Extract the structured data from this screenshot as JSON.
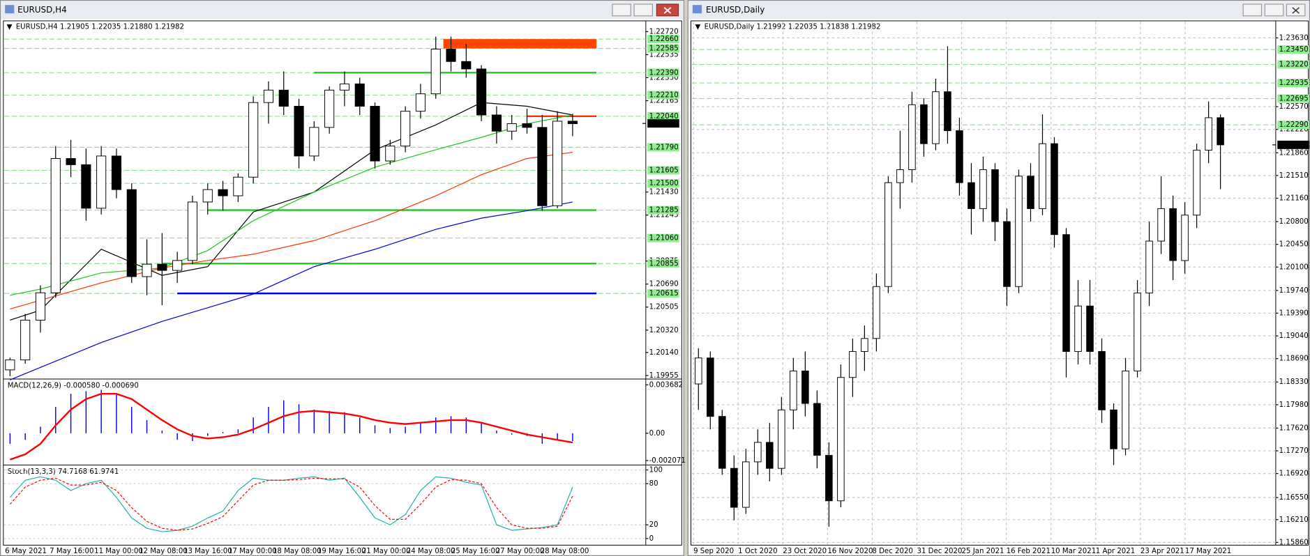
{
  "chart_data": [
    {
      "type": "candlestick",
      "window_title": "EURUSD,H4",
      "info": "EURUSD,H4  1.21905 1.22035 1.21880 1.21982",
      "grid": false,
      "ylim": [
        1.1994,
        1.228
      ],
      "yticks": [
        {
          "value": 1.2272,
          "label": "1.22720"
        },
        {
          "value": 1.22535,
          "label": "1.22535"
        },
        {
          "value": 1.2235,
          "label": "1.22350"
        },
        {
          "value": 1.22165,
          "label": "1.22165"
        },
        {
          "value": 1.2143,
          "label": "1.21430"
        },
        {
          "value": 1.21245,
          "label": "1.21245"
        },
        {
          "value": 1.20875,
          "label": "1.20875"
        },
        {
          "value": 1.2069,
          "label": "1.20690"
        },
        {
          "value": 1.20505,
          "label": "1.20505"
        },
        {
          "value": 1.2032,
          "label": "1.20320"
        },
        {
          "value": 1.2014,
          "label": "1.20140"
        },
        {
          "value": 1.19955,
          "label": "1.19955"
        }
      ],
      "levels": [
        {
          "value": 1.2266,
          "label": "1.22660"
        },
        {
          "value": 1.22585,
          "label": "1.22585"
        },
        {
          "value": 1.2239,
          "label": "1.22390"
        },
        {
          "value": 1.2221,
          "label": "1.22210"
        },
        {
          "value": 1.2204,
          "label": "1.22040"
        },
        {
          "value": 1.2179,
          "label": "1.21790"
        },
        {
          "value": 1.21605,
          "label": "1.21605"
        },
        {
          "value": 1.215,
          "label": "1.21500"
        },
        {
          "value": 1.21285,
          "label": "1.21285"
        },
        {
          "value": 1.2106,
          "label": "1.21060"
        },
        {
          "value": 1.20855,
          "label": "1.20855"
        },
        {
          "value": 1.20615,
          "label": "1.20615"
        }
      ],
      "zones": [
        {
          "from": 1.22585,
          "to": 1.2266,
          "start": 28.5,
          "color": "#ff4500"
        }
      ],
      "lines": [
        {
          "value": 1.2239,
          "start": 20,
          "color": "#22c422"
        },
        {
          "value": 1.2204,
          "start": 34,
          "color": "#ff2a00"
        },
        {
          "value": 1.21285,
          "start": 13,
          "color": "#22c422"
        },
        {
          "value": 1.20855,
          "start": 10,
          "color": "#22c422"
        },
        {
          "value": 1.20615,
          "start": 11,
          "color": "#0000e0"
        }
      ],
      "last": {
        "value": 1.21982,
        "label": "1.21982"
      },
      "x_labels": [
        "6 May 2021",
        "7 May 16:00",
        "11 May 00:00",
        "12 May 08:00",
        "13 May 16:00",
        "17 May 00:00",
        "18 May 08:00",
        "19 May 16:00",
        "21 May 00:00",
        "24 May 08:00",
        "25 May 16:00",
        "27 May 00:00",
        "28 May 08:00"
      ],
      "open": [
        1.2,
        1.2008,
        1.204,
        1.2062,
        1.217,
        1.2165,
        1.213,
        1.2172,
        1.2145,
        1.2075,
        1.2085,
        1.208,
        1.2088,
        1.2135,
        1.2145,
        1.214,
        1.2155,
        1.2215,
        1.2225,
        1.2212,
        1.2172,
        1.2195,
        1.2225,
        1.223,
        1.2212,
        1.2168,
        1.218,
        1.2208,
        1.2222,
        1.2258,
        1.2248,
        1.2242,
        1.2205,
        1.2192,
        1.2198,
        1.2195,
        1.2132,
        1.22
      ],
      "high": [
        1.201,
        1.2045,
        1.2068,
        1.218,
        1.2185,
        1.2178,
        1.218,
        1.2178,
        1.215,
        1.2105,
        1.211,
        1.2095,
        1.214,
        1.215,
        1.2152,
        1.2158,
        1.222,
        1.2232,
        1.224,
        1.2218,
        1.22,
        1.2228,
        1.224,
        1.2235,
        1.2215,
        1.2185,
        1.2212,
        1.223,
        1.2268,
        1.2268,
        1.2262,
        1.2245,
        1.2212,
        1.2205,
        1.221,
        1.2205,
        1.2208,
        1.2206
      ],
      "low": [
        1.1995,
        1.2005,
        1.203,
        1.2058,
        1.2155,
        1.212,
        1.2125,
        1.2138,
        1.207,
        1.206,
        1.2052,
        1.207,
        1.2085,
        1.2125,
        1.2128,
        1.2135,
        1.215,
        1.2198,
        1.2205,
        1.2162,
        1.2168,
        1.219,
        1.2212,
        1.2205,
        1.2162,
        1.2165,
        1.2175,
        1.2202,
        1.2218,
        1.224,
        1.2235,
        1.22,
        1.2182,
        1.2185,
        1.219,
        1.2128,
        1.213,
        1.2188
      ],
      "close": [
        1.2008,
        1.204,
        1.2062,
        1.217,
        1.2165,
        1.213,
        1.2172,
        1.2145,
        1.2075,
        1.2085,
        1.208,
        1.2088,
        1.2135,
        1.2145,
        1.214,
        1.2155,
        1.2215,
        1.2225,
        1.2212,
        1.2172,
        1.2195,
        1.2225,
        1.223,
        1.2212,
        1.2168,
        1.218,
        1.2208,
        1.2222,
        1.2258,
        1.2248,
        1.2242,
        1.2205,
        1.2192,
        1.2198,
        1.2195,
        1.2132,
        1.22,
        1.2198
      ],
      "moving_averages": [
        {
          "color": "#000000",
          "x": [
            0,
            2,
            6,
            10,
            13,
            16,
            20,
            24,
            28,
            31,
            34,
            37
          ],
          "values": [
            1.204,
            1.2048,
            1.2097,
            1.2076,
            1.2083,
            1.2127,
            1.2143,
            1.2177,
            1.2197,
            1.2215,
            1.2212,
            1.2205
          ]
        },
        {
          "color": "#22c422",
          "x": [
            0,
            2,
            6,
            10,
            13,
            16,
            20,
            24,
            28,
            31,
            34,
            37
          ],
          "values": [
            1.206,
            1.2065,
            1.2078,
            1.2082,
            1.2096,
            1.212,
            1.2143,
            1.2163,
            1.2177,
            1.2187,
            1.2198,
            1.2205
          ]
        },
        {
          "color": "#ff3300",
          "x": [
            0,
            2,
            6,
            10,
            13,
            16,
            20,
            24,
            28,
            31,
            34,
            37
          ],
          "values": [
            1.2049,
            1.2056,
            1.207,
            1.2082,
            1.2088,
            1.2093,
            1.2104,
            1.212,
            1.214,
            1.2157,
            1.217,
            1.2175
          ]
        },
        {
          "color": "#0000e0",
          "x": [
            0,
            2,
            6,
            10,
            13,
            16,
            20,
            24,
            28,
            31,
            34,
            37
          ],
          "values": [
            1.1992,
            1.2002,
            1.2022,
            1.2039,
            1.205,
            1.2061,
            1.2083,
            1.2097,
            1.2113,
            1.2122,
            1.2128,
            1.2135
          ]
        }
      ],
      "macd": {
        "label": "MACD(12,26,9) -0.000580 -0.000690",
        "ylim": [
          -0.00235,
          0.00387
        ],
        "yticks": [
          0.003682,
          {
            "value": 0,
            "label": "0.00"
          },
          -0.002071
        ],
        "histogram_color": "#0000ff",
        "signal_color": "#ff0000",
        "histogram": [
          -0.0008,
          -0.0005,
          0.0005,
          0.002,
          0.003,
          0.0032,
          0.0033,
          0.003,
          0.002,
          0.001,
          0.0002,
          -0.0005,
          -0.0006,
          -0.0002,
          0.0001,
          0.0003,
          0.0012,
          0.002,
          0.0025,
          0.0022,
          0.0018,
          0.0017,
          0.0016,
          0.0012,
          0.0006,
          0.0004,
          0.0005,
          0.0008,
          0.0012,
          0.0013,
          0.0012,
          0.0008,
          0.0002,
          -0.0001,
          -0.0002,
          -0.0008,
          -0.0005,
          -0.0006
        ],
        "signal": [
          -0.002,
          -0.0016,
          -0.0008,
          0.0006,
          0.0018,
          0.0026,
          0.003,
          0.003,
          0.0026,
          0.0018,
          0.001,
          0.0003,
          -0.0002,
          -0.0004,
          -0.0003,
          -0.0001,
          0.0003,
          0.0008,
          0.0013,
          0.0016,
          0.0017,
          0.0016,
          0.0015,
          0.0013,
          0.001,
          0.0008,
          0.0007,
          0.0008,
          0.0009,
          0.001,
          0.001,
          0.0008,
          0.0005,
          0.0002,
          -0.0001,
          -0.0003,
          -0.0005,
          -0.0007
        ]
      },
      "stoch": {
        "label": "Stoch(13,3,3) 74.7168 61.9741",
        "ylim": [
          -6,
          106
        ],
        "yticks": [
          100,
          80,
          20,
          0
        ],
        "main_color": "#20b2aa",
        "signal_color": "#ff0000",
        "main": [
          60,
          85,
          90,
          85,
          70,
          80,
          85,
          60,
          30,
          15,
          10,
          12,
          18,
          30,
          40,
          70,
          88,
          85,
          85,
          88,
          90,
          85,
          88,
          60,
          30,
          20,
          35,
          70,
          90,
          88,
          82,
          78,
          20,
          12,
          14,
          16,
          20,
          75
        ],
        "signal": [
          50,
          75,
          85,
          88,
          78,
          78,
          82,
          70,
          45,
          25,
          15,
          12,
          14,
          22,
          32,
          55,
          78,
          85,
          85,
          86,
          88,
          87,
          87,
          75,
          48,
          28,
          28,
          50,
          75,
          86,
          85,
          80,
          45,
          20,
          15,
          15,
          18,
          62
        ]
      }
    },
    {
      "type": "candlestick",
      "window_title": "EURUSD,Daily",
      "info": "EURUSD,Daily  1.21992 1.22035 1.21838 1.21982",
      "grid": true,
      "ylim": [
        1.1583,
        1.2375
      ],
      "yticks": [
        {
          "value": 1.2363,
          "label": "1.23630"
        },
        {
          "value": 1.2257,
          "label": "1.22570"
        },
        {
          "value": 1.2222,
          "label": "1.22220"
        },
        {
          "value": 1.2186,
          "label": "1.21860"
        },
        {
          "value": 1.2151,
          "label": "1.21510"
        },
        {
          "value": 1.2116,
          "label": "1.21160"
        },
        {
          "value": 1.208,
          "label": "1.20800"
        },
        {
          "value": 1.2045,
          "label": "1.20450"
        },
        {
          "value": 1.201,
          "label": "1.20100"
        },
        {
          "value": 1.1974,
          "label": "1.19740"
        },
        {
          "value": 1.1939,
          "label": "1.19390"
        },
        {
          "value": 1.1904,
          "label": "1.19040"
        },
        {
          "value": 1.1869,
          "label": "1.18690"
        },
        {
          "value": 1.1833,
          "label": "1.18330"
        },
        {
          "value": 1.1798,
          "label": "1.17980"
        },
        {
          "value": 1.1762,
          "label": "1.17620"
        },
        {
          "value": 1.1727,
          "label": "1.17270"
        },
        {
          "value": 1.1692,
          "label": "1.16920"
        },
        {
          "value": 1.1655,
          "label": "1.16550"
        },
        {
          "value": 1.1621,
          "label": "1.16210"
        },
        {
          "value": 1.1586,
          "label": "1.15860"
        }
      ],
      "levels": [
        {
          "value": 1.2345,
          "label": "1.23450"
        },
        {
          "value": 1.2322,
          "label": "1.23220"
        },
        {
          "value": 1.22935,
          "label": "1.22935"
        },
        {
          "value": 1.22695,
          "label": "1.22695"
        },
        {
          "value": 1.2229,
          "label": "1.22290"
        }
      ],
      "zones": [],
      "lines": [],
      "last": {
        "value": 1.21982,
        "label": "1.21982"
      },
      "x_labels": [
        "9 Sep 2020",
        "1 Oct 2020",
        "23 Oct 2020",
        "16 Nov 2020",
        "8 Dec 2020",
        "31 Dec 2020",
        "25 Jan 2021",
        "16 Feb 2021",
        "10 Mar 2021",
        "1 Apr 2021",
        "23 Apr 2021",
        "17 May 2021"
      ],
      "open": [
        1.183,
        1.187,
        1.178,
        1.17,
        1.164,
        1.171,
        1.174,
        1.17,
        1.179,
        1.185,
        1.18,
        1.172,
        1.165,
        1.184,
        1.188,
        1.19,
        1.198,
        1.214,
        1.216,
        1.226,
        1.22,
        1.228,
        1.222,
        1.214,
        1.21,
        1.216,
        1.208,
        1.198,
        1.215,
        1.21,
        1.22,
        1.206,
        1.188,
        1.195,
        1.188,
        1.179,
        1.173,
        1.185,
        1.197,
        1.205,
        1.21,
        1.202,
        1.209,
        1.219,
        1.224
      ],
      "high": [
        1.1885,
        1.188,
        1.179,
        1.172,
        1.173,
        1.176,
        1.177,
        1.181,
        1.187,
        1.188,
        1.182,
        1.174,
        1.186,
        1.19,
        1.192,
        1.2,
        1.215,
        1.222,
        1.228,
        1.227,
        1.23,
        1.235,
        1.224,
        1.217,
        1.218,
        1.217,
        1.21,
        1.216,
        1.217,
        1.2245,
        1.221,
        1.207,
        1.199,
        1.199,
        1.19,
        1.18,
        1.187,
        1.199,
        1.208,
        1.215,
        1.212,
        1.211,
        1.22,
        1.2265,
        1.2245
      ],
      "low": [
        1.179,
        1.176,
        1.169,
        1.162,
        1.163,
        1.169,
        1.168,
        1.169,
        1.176,
        1.178,
        1.17,
        1.161,
        1.164,
        1.181,
        1.185,
        1.188,
        1.197,
        1.21,
        1.214,
        1.218,
        1.219,
        1.22,
        1.212,
        1.206,
        1.208,
        1.205,
        1.195,
        1.197,
        1.208,
        1.209,
        1.204,
        1.184,
        1.186,
        1.186,
        1.177,
        1.1705,
        1.172,
        1.184,
        1.195,
        1.203,
        1.199,
        1.2,
        1.207,
        1.217,
        1.213
      ],
      "close": [
        1.187,
        1.178,
        1.17,
        1.164,
        1.171,
        1.174,
        1.17,
        1.179,
        1.185,
        1.18,
        1.172,
        1.165,
        1.184,
        1.188,
        1.19,
        1.198,
        1.214,
        1.216,
        1.226,
        1.22,
        1.228,
        1.222,
        1.214,
        1.21,
        1.216,
        1.208,
        1.198,
        1.215,
        1.21,
        1.22,
        1.206,
        1.188,
        1.195,
        1.188,
        1.179,
        1.173,
        1.185,
        1.197,
        1.205,
        1.21,
        1.202,
        1.209,
        1.219,
        1.224,
        1.21982
      ],
      "moving_averages": []
    }
  ]
}
